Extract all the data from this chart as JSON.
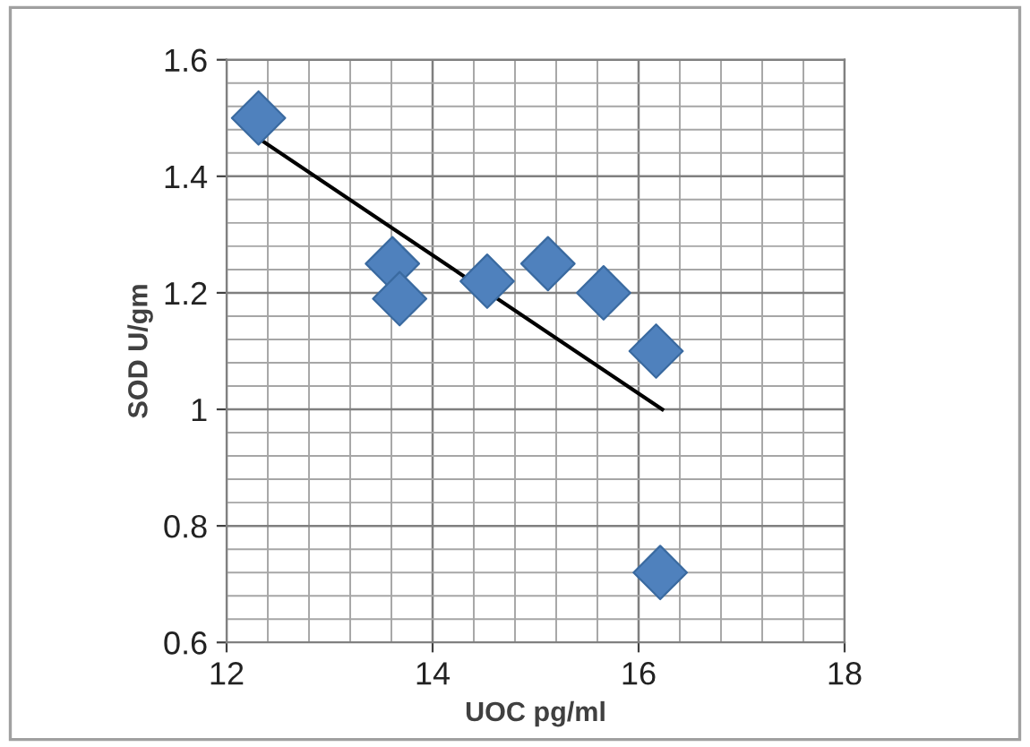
{
  "chart_data": {
    "type": "scatter",
    "xlabel": "UOC pg/ml",
    "ylabel": "SOD U/gm",
    "xlim": [
      12,
      18
    ],
    "xticks": [
      12,
      14,
      16,
      18
    ],
    "ylim": [
      0.6,
      1.6
    ],
    "yticks": [
      0.6,
      0.8,
      1,
      1.2,
      1.4,
      1.6
    ],
    "grid": true,
    "marker": "diamond",
    "series": [
      {
        "color": "#4f81bd",
        "x": [
          12.31,
          13.61,
          13.68,
          14.53,
          15.12,
          15.66,
          16.17,
          16.21
        ],
        "values": [
          1.5,
          1.25,
          1.19,
          1.22,
          1.25,
          1.2,
          1.1,
          0.72
        ]
      },
      {
        "type": "line",
        "color": "#000000",
        "marker": "none",
        "x": [
          12.31,
          16.23
        ],
        "values": [
          1.465,
          1.0
        ]
      }
    ]
  }
}
